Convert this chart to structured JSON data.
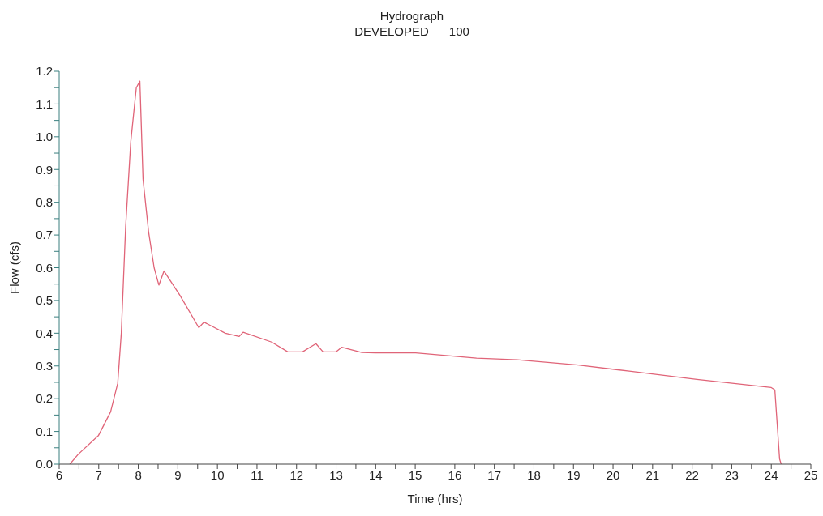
{
  "chart_data": {
    "type": "line",
    "title": "Hydrograph",
    "subtitle": "DEVELOPED      100",
    "xlabel": "Time (hrs)",
    "ylabel": "Flow (cfs)",
    "x": [
      6.27,
      6.48,
      6.99,
      7.3,
      7.48,
      7.57,
      7.68,
      7.81,
      7.95,
      8.04,
      8.12,
      8.26,
      8.4,
      8.52,
      8.65,
      9.05,
      9.53,
      9.66,
      10.2,
      10.55,
      10.65,
      11.37,
      11.78,
      12.15,
      12.49,
      12.67,
      13.0,
      13.14,
      13.65,
      13.99,
      15.01,
      16.55,
      17.58,
      19.12,
      20.41,
      22.12,
      24.0,
      24.09,
      24.21,
      24.25
    ],
    "series": [
      {
        "color": "#e06478",
        "values": [
          0,
          0.03,
          0.087,
          0.16,
          0.247,
          0.4,
          0.725,
          0.985,
          1.15,
          1.17,
          0.87,
          0.71,
          0.6,
          0.547,
          0.59,
          0.516,
          0.417,
          0.434,
          0.4,
          0.39,
          0.403,
          0.373,
          0.343,
          0.343,
          0.368,
          0.343,
          0.343,
          0.357,
          0.341,
          0.34,
          0.34,
          0.324,
          0.319,
          0.303,
          0.284,
          0.259,
          0.234,
          0.227,
          0.016,
          0
        ]
      }
    ],
    "xlim": [
      6,
      25
    ],
    "xticks": [
      6,
      {
        "value": 6.5,
        "label": null
      },
      7,
      {
        "value": 7.5,
        "label": null
      },
      8,
      {
        "value": 8.5,
        "label": null
      },
      9,
      {
        "value": 9.5,
        "label": null
      },
      10,
      {
        "value": 10.5,
        "label": null
      },
      11,
      {
        "value": 11.5,
        "label": null
      },
      12,
      {
        "value": 12.5,
        "label": null
      },
      13,
      {
        "value": 13.5,
        "label": null
      },
      14,
      {
        "value": 14.5,
        "label": null
      },
      15,
      {
        "value": 15.5,
        "label": null
      },
      16,
      {
        "value": 16.5,
        "label": null
      },
      17,
      {
        "value": 17.5,
        "label": null
      },
      18,
      {
        "value": 18.5,
        "label": null
      },
      19,
      {
        "value": 19.5,
        "label": null
      },
      20,
      {
        "value": 20.5,
        "label": null
      },
      21,
      {
        "value": 21.5,
        "label": null
      },
      22,
      {
        "value": 22.5,
        "label": null
      },
      23,
      {
        "value": 23.5,
        "label": null
      },
      24,
      {
        "value": 24.5,
        "label": null
      },
      25
    ],
    "ylim": [
      0,
      1.2
    ],
    "yticks": [
      {
        "value": 0,
        "label": "0.0"
      },
      {
        "value": 0.05,
        "label": null
      },
      {
        "value": 0.1,
        "label": "0.1"
      },
      {
        "value": 0.15,
        "label": null
      },
      {
        "value": 0.2,
        "label": "0.2"
      },
      {
        "value": 0.25,
        "label": null
      },
      {
        "value": 0.3,
        "label": "0.3"
      },
      {
        "value": 0.35,
        "label": null
      },
      {
        "value": 0.4,
        "label": "0.4"
      },
      {
        "value": 0.45,
        "label": null
      },
      {
        "value": 0.5,
        "label": "0.5"
      },
      {
        "value": 0.55,
        "label": null
      },
      {
        "value": 0.6,
        "label": "0.6"
      },
      {
        "value": 0.65,
        "label": null
      },
      {
        "value": 0.7,
        "label": "0.7"
      },
      {
        "value": 0.75,
        "label": null
      },
      {
        "value": 0.8,
        "label": "0.8"
      },
      {
        "value": 0.85,
        "label": null
      },
      {
        "value": 0.9,
        "label": "0.9"
      },
      {
        "value": 0.95,
        "label": null
      },
      {
        "value": 1.0,
        "label": "1.0"
      },
      {
        "value": 1.05,
        "label": null
      },
      {
        "value": 1.1,
        "label": "1.1"
      },
      {
        "value": 1.15,
        "label": null
      },
      {
        "value": 1.2,
        "label": "1.2"
      }
    ],
    "grid": false,
    "legend": false,
    "marker": "none",
    "line_style": "solid"
  }
}
